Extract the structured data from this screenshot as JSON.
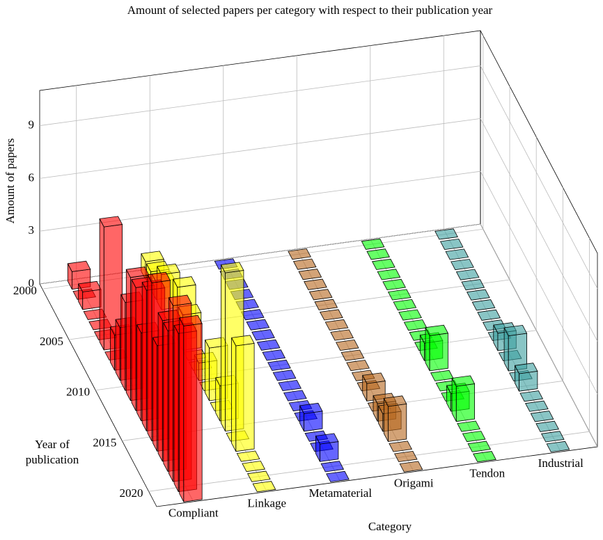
{
  "chart_data": {
    "type": "bar3d",
    "title": "Amount of selected papers per category with respect to their publication year",
    "xlabel": "Category",
    "ylabel": "Year of publication",
    "zlabel": "Amount of papers",
    "categories": [
      "Compliant",
      "Linkage",
      "Metamaterial",
      "Origami",
      "Tendon",
      "Industrial"
    ],
    "colors": [
      "#ff0000",
      "#ffff00",
      "#0000ff",
      "#b5651d",
      "#00ff00",
      "#3a9f9f"
    ],
    "years": [
      2000,
      2001,
      2002,
      2003,
      2004,
      2005,
      2006,
      2007,
      2008,
      2009,
      2010,
      2011,
      2012,
      2013,
      2014,
      2015,
      2016,
      2017,
      2018,
      2019,
      2020,
      2021
    ],
    "values": [
      [
        1,
        0,
        1,
        0,
        0,
        0,
        7,
        0,
        2,
        3,
        5,
        7,
        7,
        5,
        8,
        9,
        6,
        8,
        8,
        10,
        9,
        10
      ],
      [
        1,
        1,
        1,
        2,
        0,
        0,
        3,
        2,
        0,
        0,
        1,
        0,
        3,
        0,
        2,
        9,
        0,
        6,
        0,
        0,
        0,
        0
      ],
      [
        0,
        0,
        0,
        0,
        0,
        0,
        0,
        0,
        0,
        0,
        0,
        0,
        0,
        0,
        0,
        0,
        1,
        0,
        0,
        1,
        0,
        0
      ],
      [
        0,
        0,
        0,
        0,
        0,
        0,
        0,
        0,
        0,
        0,
        0,
        0,
        0,
        0,
        1,
        0,
        1,
        1,
        2,
        0,
        0,
        0
      ],
      [
        0,
        0,
        0,
        0,
        0,
        0,
        0,
        0,
        0,
        0,
        0,
        1,
        2,
        0,
        0,
        0,
        1,
        2,
        0,
        0,
        0,
        0
      ],
      [
        0,
        0,
        0,
        0,
        0,
        0,
        0,
        0,
        0,
        0,
        0,
        1,
        0,
        2,
        0,
        1,
        0,
        0,
        0,
        0,
        0,
        0
      ]
    ],
    "ylim": [
      1999.5,
      2021.5
    ],
    "yticks": [
      2000,
      2005,
      2010,
      2015,
      2020
    ],
    "zlim": [
      0,
      11
    ],
    "zticks": [
      0,
      3,
      6,
      9
    ],
    "grid": true
  }
}
